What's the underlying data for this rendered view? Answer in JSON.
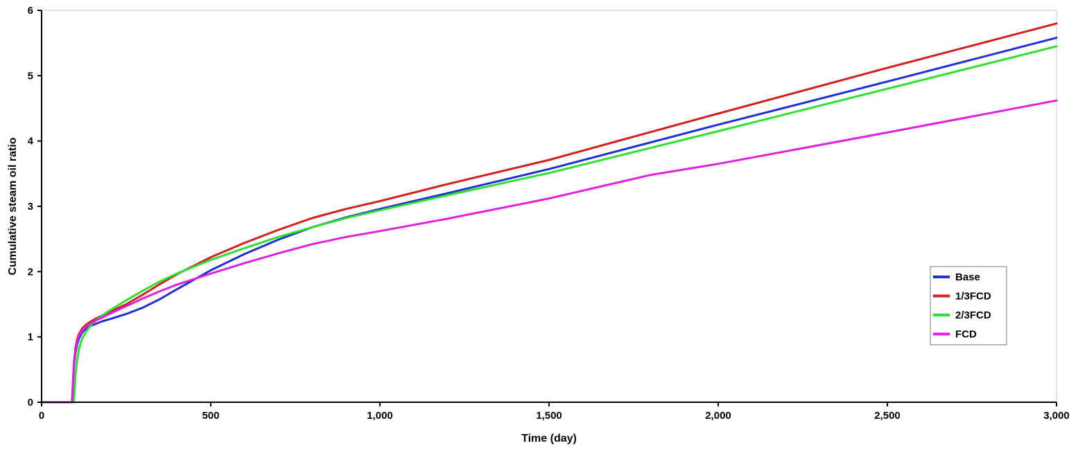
{
  "chart_data": {
    "type": "line",
    "title": "",
    "xlabel": "Time (day)",
    "ylabel": "Cumulative steam oil ratio",
    "xlim": [
      0,
      3000
    ],
    "ylim": [
      0,
      6
    ],
    "xticks": [
      0,
      500,
      1000,
      1500,
      2000,
      2500,
      3000
    ],
    "xtick_labels": [
      "0",
      "500",
      "1,000",
      "1,500",
      "2,000",
      "2,500",
      "3,000"
    ],
    "yticks": [
      0,
      1,
      2,
      3,
      4,
      5,
      6
    ],
    "ytick_labels": [
      "0",
      "1",
      "2",
      "3",
      "4",
      "5",
      "6"
    ],
    "grid": false,
    "legend_position": "right",
    "series": [
      {
        "name": "Base",
        "color": "#1f2fd6",
        "x": [
          0,
          90,
          93,
          96,
          100,
          105,
          110,
          120,
          130,
          140,
          150,
          160,
          180,
          200,
          250,
          300,
          350,
          400,
          500,
          600,
          700,
          800,
          900,
          1000,
          1200,
          1500,
          2000,
          2500,
          3000
        ],
        "y": [
          0,
          0,
          0.3,
          0.55,
          0.75,
          0.88,
          0.97,
          1.07,
          1.12,
          1.16,
          1.18,
          1.2,
          1.24,
          1.27,
          1.35,
          1.45,
          1.58,
          1.73,
          2.02,
          2.27,
          2.49,
          2.68,
          2.83,
          2.96,
          3.2,
          3.57,
          4.25,
          4.91,
          5.58
        ]
      },
      {
        "name": "1/3FCD",
        "color": "#d21f1f",
        "x": [
          0,
          90,
          93,
          96,
          100,
          105,
          110,
          120,
          130,
          140,
          150,
          160,
          180,
          200,
          250,
          300,
          350,
          400,
          500,
          600,
          700,
          800,
          900,
          1000,
          1200,
          1500,
          2000,
          2500,
          3000
        ],
        "y": [
          0,
          0,
          0.35,
          0.62,
          0.83,
          0.96,
          1.04,
          1.13,
          1.18,
          1.22,
          1.25,
          1.28,
          1.33,
          1.38,
          1.5,
          1.65,
          1.81,
          1.96,
          2.22,
          2.44,
          2.64,
          2.82,
          2.96,
          3.08,
          3.34,
          3.71,
          4.42,
          5.12,
          5.8
        ]
      },
      {
        "name": "2/3FCD",
        "color": "#2ee02e",
        "x": [
          0,
          95,
          98,
          100,
          103,
          107,
          110,
          115,
          120,
          130,
          140,
          150,
          160,
          180,
          200,
          250,
          300,
          350,
          400,
          500,
          600,
          700,
          800,
          900,
          1000,
          1200,
          1500,
          2000,
          2500,
          3000
        ],
        "y": [
          0,
          0,
          0.2,
          0.4,
          0.55,
          0.7,
          0.8,
          0.9,
          0.97,
          1.07,
          1.14,
          1.2,
          1.25,
          1.33,
          1.4,
          1.56,
          1.71,
          1.85,
          1.97,
          2.18,
          2.36,
          2.53,
          2.68,
          2.82,
          2.94,
          3.17,
          3.51,
          4.15,
          4.8,
          5.45
        ]
      },
      {
        "name": "FCD",
        "color": "#e020e0",
        "x": [
          0,
          90,
          93,
          96,
          100,
          105,
          110,
          120,
          130,
          140,
          150,
          160,
          180,
          200,
          250,
          300,
          350,
          400,
          500,
          600,
          700,
          800,
          900,
          1000,
          1200,
          1500,
          1800,
          2000,
          2500,
          3000
        ],
        "y": [
          0,
          0,
          0.32,
          0.58,
          0.8,
          0.93,
          1.01,
          1.1,
          1.15,
          1.19,
          1.22,
          1.25,
          1.3,
          1.35,
          1.47,
          1.59,
          1.7,
          1.8,
          1.97,
          2.13,
          2.28,
          2.42,
          2.53,
          2.62,
          2.81,
          3.12,
          3.48,
          3.65,
          4.13,
          4.62
        ]
      }
    ]
  }
}
